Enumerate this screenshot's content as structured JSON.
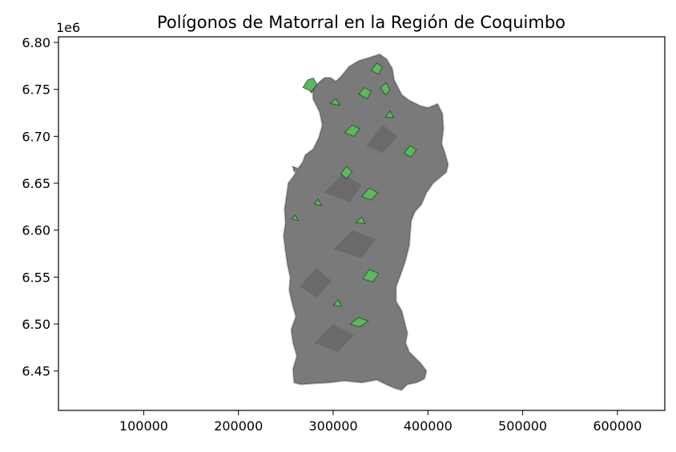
{
  "chart_data": {
    "type": "map",
    "title": "Polígonos de Matorral en la Región de Coquimbo",
    "xlabel": "",
    "ylabel": "",
    "y_offset_label": "1e6",
    "xlim": [
      10000,
      650000
    ],
    "ylim": [
      6408000,
      6806000
    ],
    "x_ticks": [
      100000,
      200000,
      300000,
      400000,
      500000,
      600000
    ],
    "x_tick_labels": [
      "100000",
      "200000",
      "300000",
      "400000",
      "500000",
      "600000"
    ],
    "y_ticks": [
      6450000,
      6500000,
      6550000,
      6600000,
      6650000,
      6700000,
      6750000,
      6800000
    ],
    "y_tick_labels": [
      "6.45",
      "6.50",
      "6.55",
      "6.60",
      "6.65",
      "6.70",
      "6.75",
      "6.80"
    ],
    "grid": false,
    "legend": "none",
    "colors": {
      "region_fill": "#7a7a7a",
      "region_dark": "#4e4e4e",
      "region_outline": "#bdbdbd",
      "matorral_fill": "#5cb85c",
      "matorral_edge": "#1f3d1f"
    },
    "region_outline": [
      [
        259000,
        6438000
      ],
      [
        258000,
        6452000
      ],
      [
        262000,
        6466000
      ],
      [
        258000,
        6480000
      ],
      [
        256000,
        6494000
      ],
      [
        261000,
        6508000
      ],
      [
        257000,
        6522000
      ],
      [
        254000,
        6536000
      ],
      [
        255000,
        6550000
      ],
      [
        252000,
        6564000
      ],
      [
        250000,
        6578000
      ],
      [
        248000,
        6594000
      ],
      [
        250000,
        6608000
      ],
      [
        249000,
        6622000
      ],
      [
        251000,
        6636000
      ],
      [
        253000,
        6650000
      ],
      [
        259000,
        6658000
      ],
      [
        262000,
        6664000
      ],
      [
        268000,
        6672000
      ],
      [
        271000,
        6680000
      ],
      [
        279000,
        6686000
      ],
      [
        285000,
        6698000
      ],
      [
        289000,
        6712000
      ],
      [
        286000,
        6726000
      ],
      [
        279000,
        6740000
      ],
      [
        279000,
        6750000
      ],
      [
        286000,
        6758000
      ],
      [
        291000,
        6762000
      ],
      [
        297000,
        6762000
      ],
      [
        303000,
        6758000
      ],
      [
        309000,
        6764000
      ],
      [
        317000,
        6774000
      ],
      [
        327000,
        6780000
      ],
      [
        340000,
        6784000
      ],
      [
        349000,
        6787000
      ],
      [
        356000,
        6782000
      ],
      [
        362000,
        6772000
      ],
      [
        364000,
        6760000
      ],
      [
        372000,
        6744000
      ],
      [
        380000,
        6738000
      ],
      [
        392000,
        6732000
      ],
      [
        400000,
        6730000
      ],
      [
        410000,
        6734000
      ],
      [
        415000,
        6724000
      ],
      [
        416000,
        6708000
      ],
      [
        414000,
        6692000
      ],
      [
        417000,
        6684000
      ],
      [
        421000,
        6670000
      ],
      [
        419000,
        6662000
      ],
      [
        412000,
        6656000
      ],
      [
        405000,
        6650000
      ],
      [
        398000,
        6640000
      ],
      [
        393000,
        6628000
      ],
      [
        386000,
        6620000
      ],
      [
        382000,
        6610000
      ],
      [
        381000,
        6598000
      ],
      [
        380000,
        6584000
      ],
      [
        376000,
        6568000
      ],
      [
        372000,
        6556000
      ],
      [
        366000,
        6540000
      ],
      [
        366000,
        6524000
      ],
      [
        372000,
        6514000
      ],
      [
        375000,
        6502000
      ],
      [
        378000,
        6490000
      ],
      [
        376000,
        6480000
      ],
      [
        380000,
        6470000
      ],
      [
        392000,
        6458000
      ],
      [
        398000,
        6450000
      ],
      [
        396000,
        6442000
      ],
      [
        388000,
        6438000
      ],
      [
        378000,
        6436000
      ],
      [
        372000,
        6430000
      ],
      [
        365000,
        6432000
      ],
      [
        356000,
        6436000
      ],
      [
        346000,
        6441000
      ],
      [
        330000,
        6438000
      ],
      [
        312000,
        6440000
      ],
      [
        296000,
        6438000
      ],
      [
        278000,
        6437000
      ],
      [
        266000,
        6436000
      ]
    ],
    "coastal_islets": [
      [
        [
          273000,
          6752000
        ],
        [
          277000,
          6746000
        ],
        [
          280000,
          6750000
        ],
        [
          276000,
          6756000
        ]
      ],
      [
        [
          257000,
          6668000
        ],
        [
          259000,
          6662000
        ],
        [
          262000,
          6666000
        ]
      ]
    ],
    "matorral_polygons": [
      [
        [
          268000,
          6752000
        ],
        [
          273000,
          6760000
        ],
        [
          279000,
          6762000
        ],
        [
          283000,
          6755000
        ],
        [
          277000,
          6748000
        ]
      ],
      [
        [
          327000,
          6745000
        ],
        [
          333000,
          6752000
        ],
        [
          340000,
          6748000
        ],
        [
          336000,
          6740000
        ]
      ],
      [
        [
          340000,
          6770000
        ],
        [
          346000,
          6778000
        ],
        [
          352000,
          6774000
        ],
        [
          348000,
          6766000
        ]
      ],
      [
        [
          350000,
          6752000
        ],
        [
          356000,
          6757000
        ],
        [
          360000,
          6749000
        ],
        [
          355000,
          6744000
        ]
      ],
      [
        [
          312000,
          6704000
        ],
        [
          320000,
          6712000
        ],
        [
          328000,
          6708000
        ],
        [
          322000,
          6700000
        ]
      ],
      [
        [
          375000,
          6682000
        ],
        [
          381000,
          6690000
        ],
        [
          388000,
          6686000
        ],
        [
          382000,
          6678000
        ]
      ],
      [
        [
          308000,
          6660000
        ],
        [
          314000,
          6668000
        ],
        [
          320000,
          6662000
        ],
        [
          314000,
          6655000
        ]
      ],
      [
        [
          330000,
          6636000
        ],
        [
          338000,
          6645000
        ],
        [
          347000,
          6640000
        ],
        [
          340000,
          6632000
        ]
      ],
      [
        [
          324000,
          6608000
        ],
        [
          330000,
          6614000
        ],
        [
          334000,
          6607000
        ]
      ],
      [
        [
          331000,
          6548000
        ],
        [
          338000,
          6558000
        ],
        [
          348000,
          6554000
        ],
        [
          342000,
          6545000
        ]
      ],
      [
        [
          318000,
          6500000
        ],
        [
          327000,
          6507000
        ],
        [
          337000,
          6503000
        ],
        [
          328000,
          6497000
        ]
      ],
      [
        [
          256000,
          6612000
        ],
        [
          260000,
          6616000
        ],
        [
          263000,
          6610000
        ]
      ],
      [
        [
          355000,
          6720000
        ],
        [
          360000,
          6727000
        ],
        [
          364000,
          6720000
        ]
      ],
      [
        [
          297000,
          6735000
        ],
        [
          303000,
          6740000
        ],
        [
          307000,
          6733000
        ]
      ],
      [
        [
          280000,
          6628000
        ],
        [
          284000,
          6633000
        ],
        [
          288000,
          6626000
        ]
      ],
      [
        [
          300000,
          6520000
        ],
        [
          305000,
          6526000
        ],
        [
          309000,
          6519000
        ]
      ]
    ],
    "dark_patches": [
      [
        [
          290000,
          6640000
        ],
        [
          310000,
          6660000
        ],
        [
          330000,
          6648000
        ],
        [
          318000,
          6630000
        ]
      ],
      [
        [
          300000,
          6580000
        ],
        [
          320000,
          6600000
        ],
        [
          345000,
          6590000
        ],
        [
          330000,
          6570000
        ]
      ],
      [
        [
          280000,
          6480000
        ],
        [
          300000,
          6500000
        ],
        [
          322000,
          6488000
        ],
        [
          305000,
          6470000
        ]
      ],
      [
        [
          335000,
          6690000
        ],
        [
          352000,
          6712000
        ],
        [
          368000,
          6700000
        ],
        [
          352000,
          6682000
        ]
      ],
      [
        [
          265000,
          6540000
        ],
        [
          282000,
          6560000
        ],
        [
          298000,
          6546000
        ],
        [
          283000,
          6528000
        ]
      ]
    ]
  }
}
